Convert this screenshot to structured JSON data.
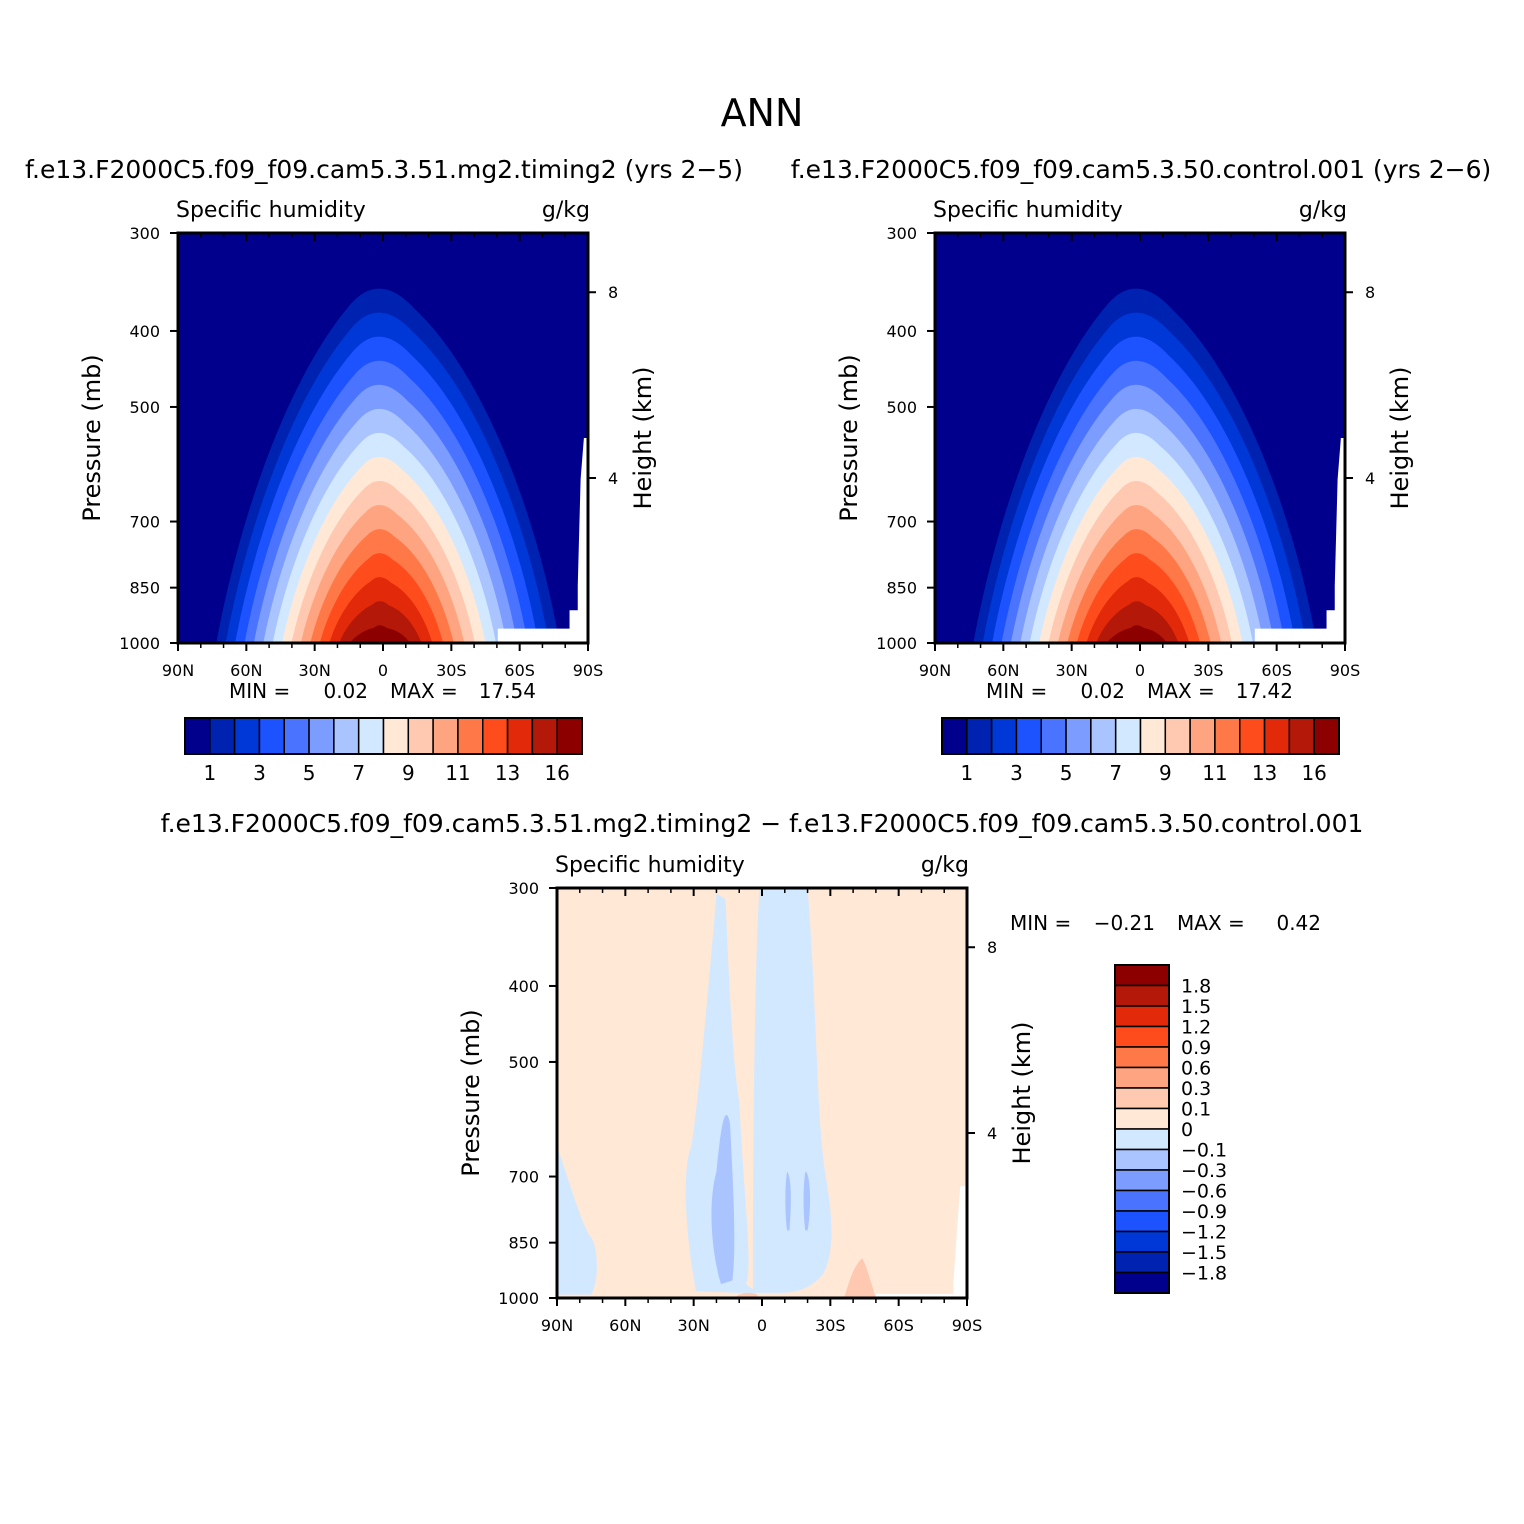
{
  "page_title": "ANN",
  "variable": "Specific humidity",
  "units": "g/kg",
  "y_axis_label": "Pressure (mb)",
  "y2_axis_label": "Height (km)",
  "pressure_ticks": [
    "300",
    "400",
    "500",
    "700",
    "850",
    "1000"
  ],
  "height_ticks": [
    "8",
    "4"
  ],
  "lat_ticks": [
    "90N",
    "60N",
    "30N",
    "0",
    "30S",
    "60S",
    "90S"
  ],
  "panels": [
    {
      "case": "f.e13.F2000C5.f09_f09.cam5.3.51.mg2.timing2 (yrs 2−5)",
      "min_label": "MIN =",
      "min": "0.02",
      "max_label": "MAX =",
      "max": "17.54"
    },
    {
      "case": "f.e13.F2000C5.f09_f09.cam5.3.50.control.001 (yrs 2−6)",
      "min_label": "MIN =",
      "min": "0.02",
      "max_label": "MAX =",
      "max": "17.42"
    }
  ],
  "diff_panel": {
    "title": "f.e13.F2000C5.f09_f09.cam5.3.51.mg2.timing2 − f.e13.F2000C5.f09_f09.cam5.3.50.control.001",
    "min_label": "MIN =",
    "min": "−0.21",
    "max_label": "MAX =",
    "max": "0.42"
  },
  "main_colorbar": {
    "colors": [
      "#00008c",
      "#0022b0",
      "#0038d8",
      "#1c52ff",
      "#4a74ff",
      "#7c9cff",
      "#aac4ff",
      "#d2e8ff",
      "#ffe8d6",
      "#ffc8b0",
      "#ffa480",
      "#ff7848",
      "#ff4c1c",
      "#e22a0a",
      "#b41808",
      "#8c0000"
    ],
    "labels": [
      "1",
      "3",
      "5",
      "7",
      "9",
      "11",
      "13",
      "16"
    ]
  },
  "diff_colorbar": {
    "colors": [
      "#8c0000",
      "#b41808",
      "#e22a0a",
      "#ff4c1c",
      "#ff7848",
      "#ffa480",
      "#ffc8b0",
      "#ffe8d6",
      "#d2e8ff",
      "#aac4ff",
      "#7c9cff",
      "#4a74ff",
      "#1c52ff",
      "#0038d8",
      "#0022b0",
      "#00008c"
    ],
    "labels": [
      "1.8",
      "1.5",
      "1.2",
      "0.9",
      "0.6",
      "0.3",
      "0.1",
      "0",
      "−0.1",
      "−0.3",
      "−0.6",
      "−0.9",
      "−1.2",
      "−1.5",
      "−1.8"
    ]
  },
  "chart_data": [
    {
      "type": "heatmap",
      "title": "f.e13.F2000C5.f09_f09.cam5.3.51.mg2.timing2 (yrs 2−5)",
      "subtitle": "Specific humidity",
      "units": "g/kg",
      "xlabel": "",
      "ylabel": "Pressure (mb)",
      "y2label": "Height (km)",
      "x_ticks": [
        "90N",
        "60N",
        "30N",
        "0",
        "30S",
        "60S",
        "90S"
      ],
      "xlim": [
        90,
        -90
      ],
      "ylim": [
        1000,
        300
      ],
      "y_scale": "log",
      "levels": [
        1,
        2,
        3,
        4,
        5,
        6,
        7,
        8,
        9,
        10,
        11,
        12,
        13,
        14,
        16
      ],
      "contour_extent_deg": [
        [
          1000,
          -67,
          72
        ],
        [
          850,
          -55,
          62
        ],
        [
          700,
          -40,
          50
        ],
        [
          500,
          -25,
          40
        ],
        [
          400,
          -8,
          12
        ],
        [
          300,
          null,
          null
        ]
      ],
      "min": 0.02,
      "max": 17.54,
      "legend": "bottom"
    },
    {
      "type": "heatmap",
      "title": "f.e13.F2000C5.f09_f09.cam5.3.50.control.001 (yrs 2−6)",
      "subtitle": "Specific humidity",
      "units": "g/kg",
      "xlabel": "",
      "ylabel": "Pressure (mb)",
      "y2label": "Height (km)",
      "x_ticks": [
        "90N",
        "60N",
        "30N",
        "0",
        "30S",
        "60S",
        "90S"
      ],
      "xlim": [
        90,
        -90
      ],
      "ylim": [
        1000,
        300
      ],
      "y_scale": "log",
      "levels": [
        1,
        2,
        3,
        4,
        5,
        6,
        7,
        8,
        9,
        10,
        11,
        12,
        13,
        14,
        16
      ],
      "min": 0.02,
      "max": 17.42,
      "legend": "bottom"
    },
    {
      "type": "heatmap",
      "title": "f.e13.F2000C5.f09_f09.cam5.3.51.mg2.timing2 − f.e13.F2000C5.f09_f09.cam5.3.50.control.001",
      "subtitle": "Specific humidity",
      "units": "g/kg",
      "xlabel": "",
      "ylabel": "Pressure (mb)",
      "y2label": "Height (km)",
      "x_ticks": [
        "90N",
        "60N",
        "30N",
        "0",
        "30S",
        "60S",
        "90S"
      ],
      "xlim": [
        90,
        -90
      ],
      "ylim": [
        1000,
        300
      ],
      "y_scale": "log",
      "levels": [
        -1.8,
        -1.5,
        -1.2,
        -0.9,
        -0.6,
        -0.3,
        -0.1,
        0,
        0.1,
        0.3,
        0.6,
        0.9,
        1.2,
        1.5,
        1.8
      ],
      "min": -0.21,
      "max": 0.42,
      "legend": "right"
    }
  ]
}
